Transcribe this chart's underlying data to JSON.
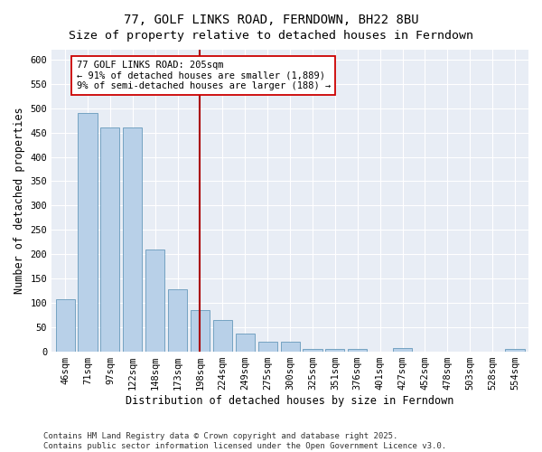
{
  "title": "77, GOLF LINKS ROAD, FERNDOWN, BH22 8BU",
  "subtitle": "Size of property relative to detached houses in Ferndown",
  "xlabel": "Distribution of detached houses by size in Ferndown",
  "ylabel": "Number of detached properties",
  "categories": [
    "46sqm",
    "71sqm",
    "97sqm",
    "122sqm",
    "148sqm",
    "173sqm",
    "198sqm",
    "224sqm",
    "249sqm",
    "275sqm",
    "300sqm",
    "325sqm",
    "351sqm",
    "376sqm",
    "401sqm",
    "427sqm",
    "452sqm",
    "478sqm",
    "503sqm",
    "528sqm",
    "554sqm"
  ],
  "values": [
    107,
    490,
    460,
    460,
    210,
    128,
    85,
    65,
    38,
    20,
    20,
    5,
    5,
    5,
    0,
    8,
    0,
    0,
    0,
    0,
    5
  ],
  "bar_color": "#b8d0e8",
  "bar_edge_color": "#6699bb",
  "vline_x_index": 6,
  "vline_color": "#aa0000",
  "annotation_line1": "77 GOLF LINKS ROAD: 205sqm",
  "annotation_line2": "← 91% of detached houses are smaller (1,889)",
  "annotation_line3": "9% of semi-detached houses are larger (188) →",
  "annotation_box_color": "#ffffff",
  "annotation_box_edge": "#cc0000",
  "ylim": [
    0,
    620
  ],
  "yticks": [
    0,
    50,
    100,
    150,
    200,
    250,
    300,
    350,
    400,
    450,
    500,
    550,
    600
  ],
  "bg_color": "#e8edf5",
  "footnote": "Contains HM Land Registry data © Crown copyright and database right 2025.\nContains public sector information licensed under the Open Government Licence v3.0.",
  "title_fontsize": 10,
  "xlabel_fontsize": 8.5,
  "ylabel_fontsize": 8.5,
  "tick_fontsize": 7.5,
  "annot_fontsize": 7.5,
  "footnote_fontsize": 6.5
}
